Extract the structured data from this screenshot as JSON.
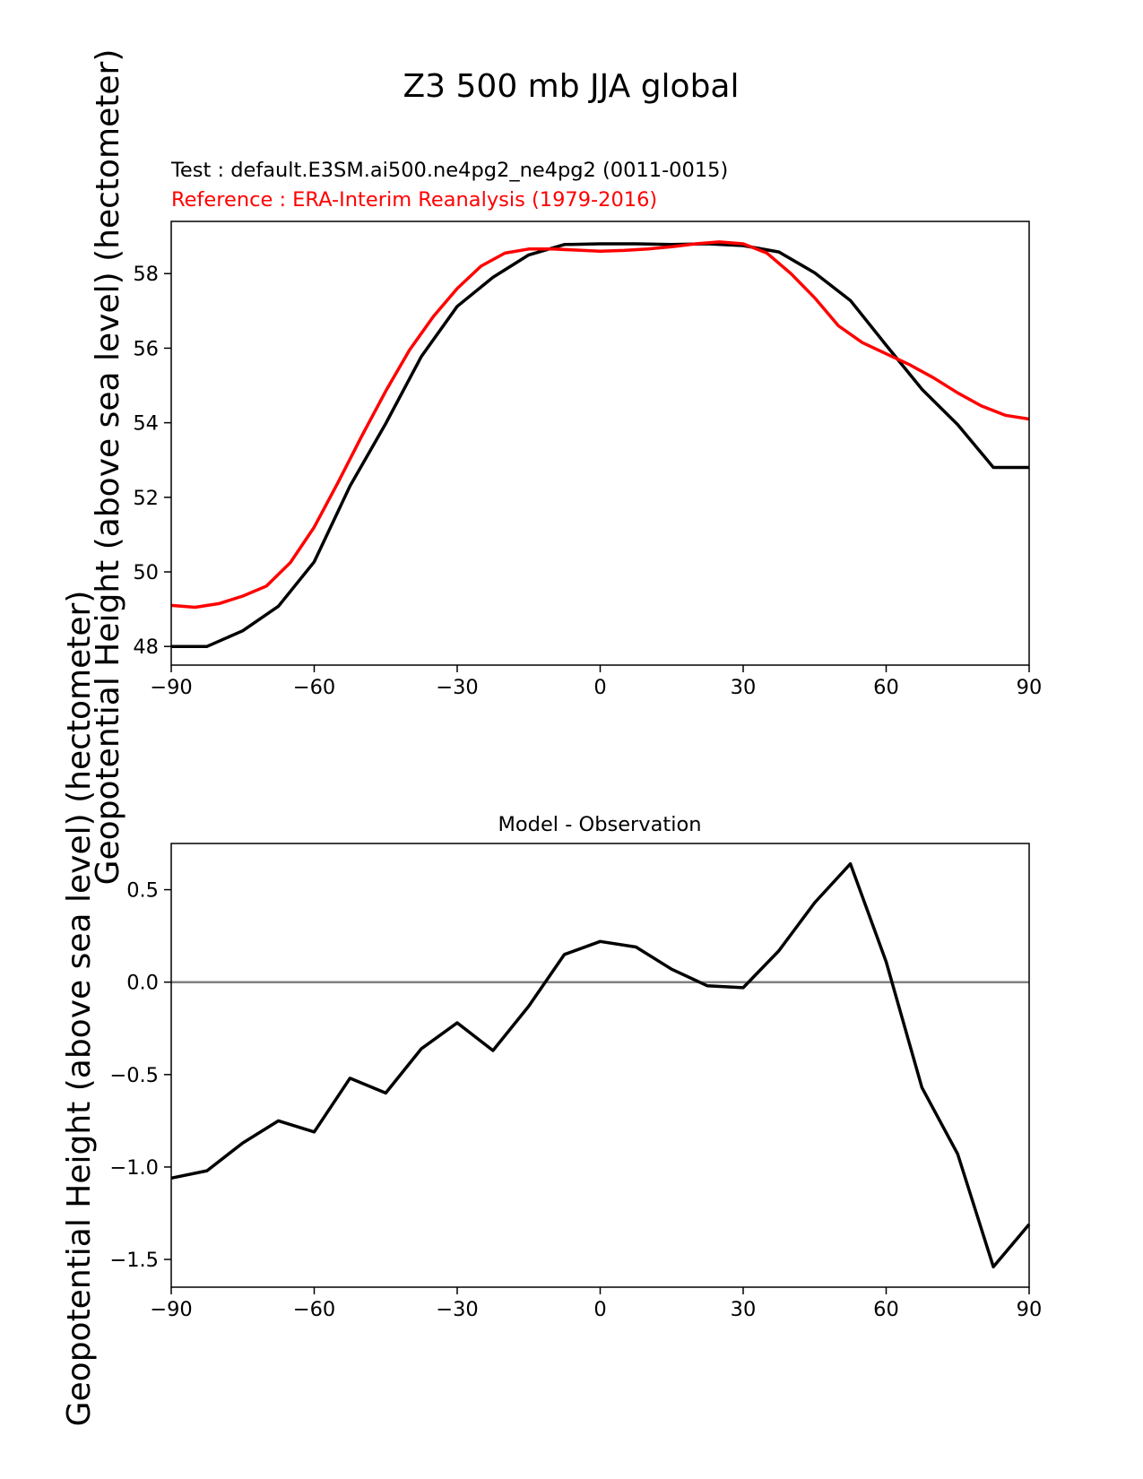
{
  "figure": {
    "suptitle": "Z3 500 mb JJA global"
  },
  "chart_data": [
    {
      "type": "line",
      "title_test": "Test : default.E3SM.ai500.ne4pg2_ne4pg2 (0011-0015)",
      "title_reference": "Reference : ERA-Interim Reanalysis (1979-2016)",
      "ylabel": "Geopotential Height (above sea level) (hectometer)",
      "xlabel": "",
      "xlim": [
        -90,
        90
      ],
      "ylim": [
        47.5,
        59.4
      ],
      "xticks": [
        -90,
        -60,
        -30,
        0,
        30,
        60,
        90
      ],
      "xtick_labels": [
        "−90",
        "−60",
        "−30",
        "0",
        "30",
        "60",
        "90"
      ],
      "yticks": [
        48,
        50,
        52,
        54,
        56,
        58
      ],
      "ytick_labels": [
        "48",
        "50",
        "52",
        "54",
        "56",
        "58"
      ],
      "colors": {
        "test": "#000000",
        "reference": "#ff0000"
      },
      "series": [
        {
          "name": "Test",
          "color": "#000000",
          "x": [
            -90,
            -82.5,
            -75,
            -67.5,
            -60,
            -52.5,
            -45,
            -37.5,
            -30,
            -22.5,
            -15,
            -7.5,
            0,
            7.5,
            15,
            22.5,
            30,
            37.5,
            45,
            52.5,
            60,
            67.5,
            75,
            82.5,
            90
          ],
          "values": [
            48.0,
            48.0,
            48.42,
            49.08,
            50.27,
            52.3,
            53.98,
            55.78,
            57.12,
            57.9,
            58.5,
            58.78,
            58.8,
            58.8,
            58.78,
            58.8,
            58.75,
            58.58,
            58.02,
            57.28,
            56.08,
            54.9,
            53.95,
            52.8,
            52.8
          ]
        },
        {
          "name": "Reference",
          "color": "#ff0000",
          "x": [
            -90,
            -85,
            -80,
            -75,
            -70,
            -65,
            -60,
            -55,
            -50,
            -45,
            -40,
            -35,
            -30,
            -25,
            -20,
            -15,
            -10,
            -5,
            0,
            5,
            10,
            15,
            20,
            25,
            30,
            35,
            40,
            45,
            50,
            55,
            60,
            65,
            70,
            75,
            80,
            85,
            90
          ],
          "values": [
            49.1,
            49.05,
            49.15,
            49.35,
            49.62,
            50.25,
            51.2,
            52.4,
            53.65,
            54.85,
            55.95,
            56.85,
            57.6,
            58.2,
            58.55,
            58.66,
            58.66,
            58.63,
            58.6,
            58.62,
            58.66,
            58.72,
            58.8,
            58.85,
            58.8,
            58.55,
            58.0,
            57.35,
            56.6,
            56.15,
            55.85,
            55.55,
            55.2,
            54.8,
            54.45,
            54.2,
            54.1
          ]
        }
      ]
    },
    {
      "type": "line",
      "title": "Model - Observation",
      "ylabel": "Geopotential Height (above sea level) (hectometer)",
      "xlabel": "",
      "xlim": [
        -90,
        90
      ],
      "ylim": [
        -1.65,
        0.75
      ],
      "xticks": [
        -90,
        -60,
        -30,
        0,
        30,
        60,
        90
      ],
      "xtick_labels": [
        "−90",
        "−60",
        "−30",
        "0",
        "30",
        "60",
        "90"
      ],
      "yticks": [
        0.5,
        0.0,
        -0.5,
        -1.0,
        -1.5
      ],
      "ytick_labels": [
        "0.5",
        "0.0",
        "−0.5",
        "−1.0",
        "−1.5"
      ],
      "zero_line": {
        "value": 0,
        "color": "#808080"
      },
      "series": [
        {
          "name": "Model - Observation",
          "color": "#000000",
          "x": [
            -90,
            -82.5,
            -75,
            -67.5,
            -60,
            -52.5,
            -45,
            -37.5,
            -30,
            -22.5,
            -15,
            -7.5,
            0,
            7.5,
            15,
            22.5,
            30,
            37.5,
            45,
            52.5,
            60,
            67.5,
            75,
            82.5,
            90
          ],
          "values": [
            -1.06,
            -1.02,
            -0.87,
            -0.75,
            -0.81,
            -0.52,
            -0.6,
            -0.36,
            -0.22,
            -0.37,
            -0.13,
            0.15,
            0.22,
            0.19,
            0.07,
            -0.02,
            -0.03,
            0.17,
            0.43,
            0.64,
            0.11,
            -0.57,
            -0.93,
            -1.54,
            -1.31
          ]
        }
      ]
    }
  ]
}
